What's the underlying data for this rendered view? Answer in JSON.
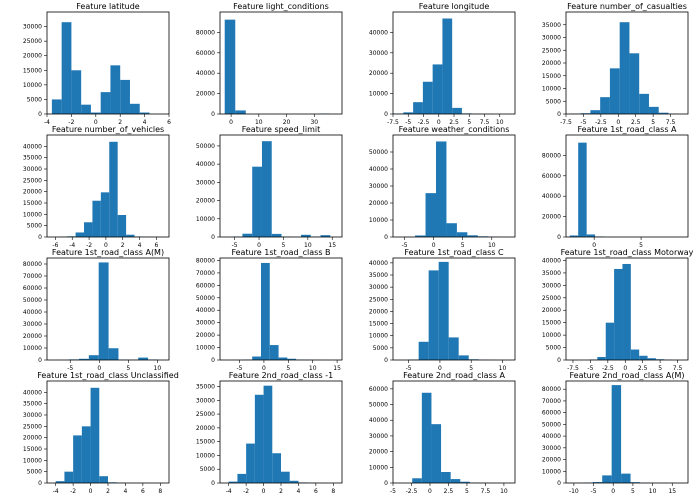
{
  "chart_data": [
    {
      "type": "bar",
      "title": "Feature latitude",
      "xlim": [
        -4,
        6
      ],
      "ylim": [
        0,
        35000
      ],
      "xticks": [
        -4,
        -2,
        0,
        2,
        4,
        6
      ],
      "yticks": [
        0,
        5000,
        10000,
        15000,
        20000,
        25000,
        30000
      ],
      "bin_edges": [
        -3.6,
        -2.8,
        -2.0,
        -1.2,
        -0.4,
        0.4,
        1.2,
        2.0,
        2.8,
        3.6,
        4.4,
        5.2
      ],
      "values": [
        5000,
        31500,
        15000,
        3200,
        500,
        7500,
        16700,
        11700,
        3500,
        500,
        0
      ],
      "color": "#1f77b4"
    },
    {
      "type": "bar",
      "title": "Feature light_conditions",
      "xlim": [
        -4,
        40
      ],
      "ylim": [
        0,
        100000
      ],
      "xticks": [
        0,
        10,
        20,
        30
      ],
      "yticks": [
        0,
        20000,
        40000,
        60000,
        80000
      ],
      "bin_edges": [
        -2.3,
        1.5,
        5.3,
        9.1,
        12.9,
        16.7,
        20.5,
        24.3,
        28.1,
        31.9,
        35.7
      ],
      "values": [
        92500,
        3500,
        0,
        0,
        0,
        0,
        0,
        0,
        0,
        300
      ],
      "color": "#1f77b4"
    },
    {
      "type": "bar",
      "title": "Feature longitude",
      "xlim": [
        -7.5,
        12.5
      ],
      "ylim": [
        0,
        50000
      ],
      "xticks": [
        -7.5,
        -5,
        -2.5,
        0,
        2.5,
        5,
        7.5,
        10
      ],
      "yticks": [
        0,
        10000,
        20000,
        30000,
        40000
      ],
      "bin_edges": [
        -7.4,
        -5.8,
        -4.2,
        -2.6,
        -1.0,
        0.6,
        2.2,
        3.8,
        5.4,
        7.0,
        8.6,
        10.2
      ],
      "values": [
        200,
        800,
        5800,
        15800,
        24300,
        46800,
        3000,
        300,
        100,
        50,
        20
      ],
      "color": "#1f77b4"
    },
    {
      "type": "bar",
      "title": "Feature number_of_casualties",
      "xlim": [
        -7.5,
        10
      ],
      "ylim": [
        0,
        40000
      ],
      "xticks": [
        -7.5,
        -5,
        -2.5,
        0,
        2.5,
        5,
        7.5
      ],
      "yticks": [
        0,
        5000,
        10000,
        15000,
        20000,
        25000,
        30000,
        35000
      ],
      "bin_edges": [
        -6.8,
        -5.4,
        -4.0,
        -2.6,
        -1.2,
        0.2,
        1.6,
        3.0,
        4.4,
        5.8,
        7.2,
        8.6
      ],
      "values": [
        100,
        300,
        1500,
        6600,
        17900,
        36000,
        23800,
        7900,
        2800,
        500,
        100
      ],
      "color": "#1f77b4"
    },
    {
      "type": "bar",
      "title": "Feature number_of_vehicles",
      "xlim": [
        -7,
        7.5
      ],
      "ylim": [
        0,
        45000
      ],
      "xticks": [
        -6,
        -4,
        -2,
        0,
        2,
        4,
        6
      ],
      "yticks": [
        0,
        5000,
        10000,
        15000,
        20000,
        25000,
        30000,
        35000,
        40000
      ],
      "bin_edges": [
        -5.6,
        -4.6,
        -3.6,
        -2.6,
        -1.6,
        -0.6,
        0.4,
        1.4,
        2.4,
        3.4,
        4.4,
        5.4,
        6.4
      ],
      "values": [
        100,
        300,
        2000,
        6500,
        16000,
        19700,
        42000,
        9700,
        1000,
        200,
        100,
        50
      ],
      "color": "#1f77b4"
    },
    {
      "type": "bar",
      "title": "Feature speed_limit",
      "xlim": [
        -8,
        17
      ],
      "ylim": [
        0,
        56000
      ],
      "xticks": [
        -5,
        0,
        5,
        10,
        15
      ],
      "yticks": [
        0,
        10000,
        20000,
        30000,
        40000,
        50000
      ],
      "bin_edges": [
        -5.4,
        -3.4,
        -1.4,
        0.6,
        2.6,
        4.6,
        6.6,
        8.6,
        10.6,
        12.6,
        14.6
      ],
      "values": [
        200,
        1800,
        38600,
        52600,
        1700,
        200,
        100,
        1200,
        200,
        1000
      ],
      "color": "#1f77b4"
    },
    {
      "type": "bar",
      "title": "Feature weather_conditions",
      "xlim": [
        -7,
        14
      ],
      "ylim": [
        0,
        60000
      ],
      "xticks": [
        -5,
        0,
        5,
        10
      ],
      "yticks": [
        0,
        10000,
        20000,
        30000,
        40000,
        50000
      ],
      "bin_edges": [
        -5.0,
        -3.2,
        -1.4,
        0.4,
        2.2,
        4.0,
        5.8,
        7.6,
        9.4,
        11.2,
        13.0
      ],
      "values": [
        100,
        900,
        25800,
        56200,
        8100,
        2800,
        1000,
        400,
        150,
        80
      ],
      "color": "#1f77b4"
    },
    {
      "type": "bar",
      "title": "Feature 1st_road_class A",
      "xlim": [
        -3,
        10
      ],
      "ylim": [
        0,
        100000
      ],
      "xticks": [
        0,
        5
      ],
      "yticks": [
        0,
        20000,
        40000,
        60000,
        80000
      ],
      "bin_edges": [
        -2.6,
        -1.7,
        -0.8,
        0.1,
        1.0,
        1.9,
        2.8,
        3.7,
        4.6,
        5.5,
        6.4
      ],
      "values": [
        1500,
        92500,
        2500,
        500,
        100,
        0,
        0,
        0,
        0,
        0
      ],
      "color": "#1f77b4"
    },
    {
      "type": "bar",
      "title": "Feature 1st_road_class A(M)",
      "xlim": [
        -9,
        12
      ],
      "ylim": [
        0,
        85000
      ],
      "xticks": [
        -5,
        0,
        5,
        10
      ],
      "yticks": [
        0,
        10000,
        20000,
        30000,
        40000,
        50000,
        60000,
        70000,
        80000
      ],
      "bin_edges": [
        -6.9,
        -5.2,
        -3.5,
        -1.8,
        -0.1,
        1.6,
        3.3,
        5.0,
        6.7,
        8.4,
        10.1
      ],
      "values": [
        100,
        500,
        1000,
        4000,
        81300,
        9800,
        300,
        200,
        2000,
        400
      ],
      "color": "#1f77b4"
    },
    {
      "type": "bar",
      "title": "Feature 1st_road_class B",
      "xlim": [
        -9,
        16
      ],
      "ylim": [
        0,
        82000
      ],
      "xticks": [
        -5,
        0,
        5,
        10,
        15
      ],
      "yticks": [
        0,
        10000,
        20000,
        30000,
        40000,
        50000,
        60000,
        70000,
        80000
      ],
      "bin_edges": [
        -6.0,
        -4.2,
        -2.4,
        -0.6,
        1.2,
        3.0,
        4.8,
        6.6,
        8.4,
        10.2,
        12.0,
        13.8
      ],
      "values": [
        100,
        300,
        2800,
        78000,
        12000,
        2000,
        1000,
        300,
        200,
        100,
        50
      ],
      "color": "#1f77b4"
    },
    {
      "type": "bar",
      "title": "Feature 1st_road_class C",
      "xlim": [
        -7.5,
        12
      ],
      "ylim": [
        0,
        42000
      ],
      "xticks": [
        -5,
        0,
        5,
        10
      ],
      "yticks": [
        0,
        5000,
        10000,
        15000,
        20000,
        25000,
        30000,
        35000,
        40000
      ],
      "bin_edges": [
        -5.0,
        -3.4,
        -1.8,
        -0.2,
        1.4,
        3.0,
        4.6,
        6.2,
        7.8,
        9.4
      ],
      "values": [
        200,
        7500,
        36900,
        40400,
        9300,
        1900,
        300,
        100,
        50
      ],
      "color": "#1f77b4"
    },
    {
      "type": "bar",
      "title": "Feature 1st_road_class Motorway",
      "xlim": [
        -8.5,
        9
      ],
      "ylim": [
        0,
        41000
      ],
      "xticks": [
        -7.5,
        -5,
        -2.5,
        0,
        2.5,
        5,
        7.5
      ],
      "yticks": [
        0,
        5000,
        10000,
        15000,
        20000,
        25000,
        30000,
        35000,
        40000
      ],
      "bin_edges": [
        -5.2,
        -4.0,
        -2.8,
        -1.6,
        -0.4,
        0.8,
        2.0,
        3.2,
        4.4,
        5.6,
        6.8
      ],
      "values": [
        200,
        1200,
        15000,
        36600,
        38600,
        4200,
        1700,
        700,
        300,
        100
      ],
      "color": "#1f77b4"
    },
    {
      "type": "bar",
      "title": "Feature 1st_road_class Unclassified",
      "xlim": [
        -5,
        9
      ],
      "ylim": [
        0,
        45000
      ],
      "xticks": [
        -4,
        -2,
        0,
        2,
        4,
        6,
        8
      ],
      "yticks": [
        0,
        5000,
        10000,
        15000,
        20000,
        25000,
        30000,
        35000,
        40000
      ],
      "bin_edges": [
        -4.0,
        -3.0,
        -2.0,
        -1.0,
        0.0,
        1.0,
        2.0,
        3.0,
        4.0,
        5.0,
        6.0,
        7.0
      ],
      "values": [
        800,
        5000,
        21000,
        25000,
        42000,
        3000,
        300,
        100,
        50,
        30,
        20
      ],
      "color": "#1f77b4"
    },
    {
      "type": "bar",
      "title": "Feature 2nd_road_class -1",
      "xlim": [
        -5,
        9
      ],
      "ylim": [
        0,
        37000
      ],
      "xticks": [
        -4,
        -2,
        0,
        2,
        4,
        6,
        8
      ],
      "yticks": [
        0,
        5000,
        10000,
        15000,
        20000,
        25000,
        30000,
        35000
      ],
      "bin_edges": [
        -4.0,
        -3.0,
        -2.0,
        -1.0,
        0.0,
        1.0,
        2.0,
        3.0,
        4.0,
        5.0,
        6.0,
        7.0
      ],
      "values": [
        500,
        3300,
        14300,
        32000,
        35300,
        10800,
        4100,
        800,
        200,
        100,
        50
      ],
      "color": "#1f77b4"
    },
    {
      "type": "bar",
      "title": "Feature 2nd_road_class A",
      "xlim": [
        -5,
        11.5
      ],
      "ylim": [
        0,
        65000
      ],
      "xticks": [
        -5,
        -2.5,
        0,
        2.5,
        5,
        7.5,
        10
      ],
      "yticks": [
        0,
        10000,
        20000,
        30000,
        40000,
        50000,
        60000
      ],
      "bin_edges": [
        -2.4,
        -1.1,
        0.2,
        1.5,
        2.8,
        4.1,
        5.4,
        6.7,
        8.0,
        9.3
      ],
      "values": [
        3000,
        57500,
        37500,
        7000,
        2500,
        800,
        200,
        100,
        50
      ],
      "color": "#1f77b4"
    },
    {
      "type": "bar",
      "title": "Feature 2nd_road_class A(M)",
      "xlim": [
        -12,
        19
      ],
      "ylim": [
        0,
        87000
      ],
      "xticks": [
        -10,
        -5,
        0,
        5,
        10,
        15
      ],
      "yticks": [
        0,
        10000,
        20000,
        30000,
        40000,
        50000,
        60000,
        70000,
        80000
      ],
      "bin_edges": [
        -10.0,
        -7.6,
        -5.2,
        -2.8,
        -0.4,
        2.0,
        4.4,
        6.8,
        9.2,
        11.6,
        14.0,
        16.4
      ],
      "values": [
        100,
        300,
        800,
        6500,
        83500,
        8000,
        700,
        200,
        100,
        50,
        20
      ],
      "color": "#1f77b4"
    }
  ]
}
